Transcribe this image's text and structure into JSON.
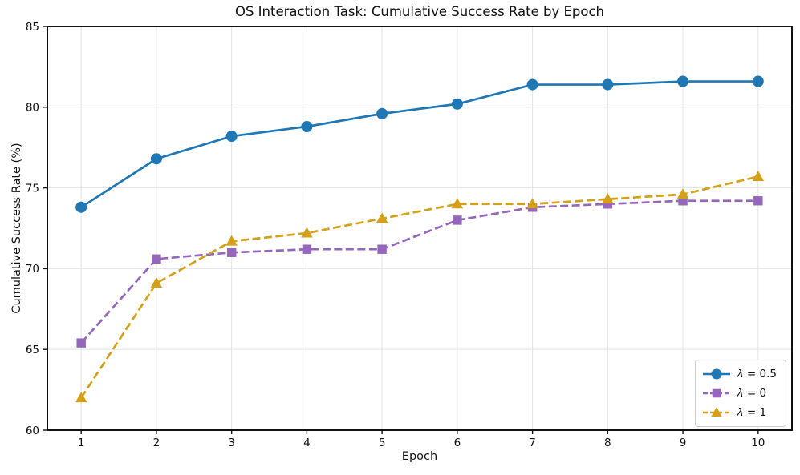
{
  "chart_data": {
    "type": "line",
    "title": "OS Interaction Task: Cumulative Success Rate by Epoch",
    "xlabel": "Epoch",
    "ylabel": "Cumulative Success Rate (%)",
    "x": [
      1,
      2,
      3,
      4,
      5,
      6,
      7,
      8,
      9,
      10
    ],
    "xlim": [
      0.55,
      10.45
    ],
    "ylim": [
      60,
      85
    ],
    "yticks": [
      60,
      65,
      70,
      75,
      80,
      85
    ],
    "grid": true,
    "legend_position": "lower right",
    "series": [
      {
        "name": "λ = 0.5",
        "values": [
          73.8,
          76.8,
          78.2,
          78.8,
          79.6,
          80.2,
          81.4,
          81.4,
          81.6,
          81.6
        ],
        "color": "#1f77b4",
        "marker": "circle",
        "line_style": "solid"
      },
      {
        "name": "λ = 0",
        "values": [
          65.4,
          70.6,
          71.0,
          71.2,
          71.2,
          73.0,
          73.8,
          74.0,
          74.2,
          74.2
        ],
        "color": "#9467bd",
        "marker": "square",
        "line_style": "dashed"
      },
      {
        "name": "λ = 1",
        "values": [
          62.0,
          69.1,
          71.7,
          72.2,
          73.1,
          74.0,
          74.0,
          74.3,
          74.6,
          75.7
        ],
        "color": "#d4a017",
        "marker": "triangle",
        "line_style": "dashed"
      }
    ],
    "style": {
      "grid_color": "#e6e6e6",
      "spine_color": "#111111",
      "text_color": "#111111",
      "background": "#ffffff"
    }
  }
}
